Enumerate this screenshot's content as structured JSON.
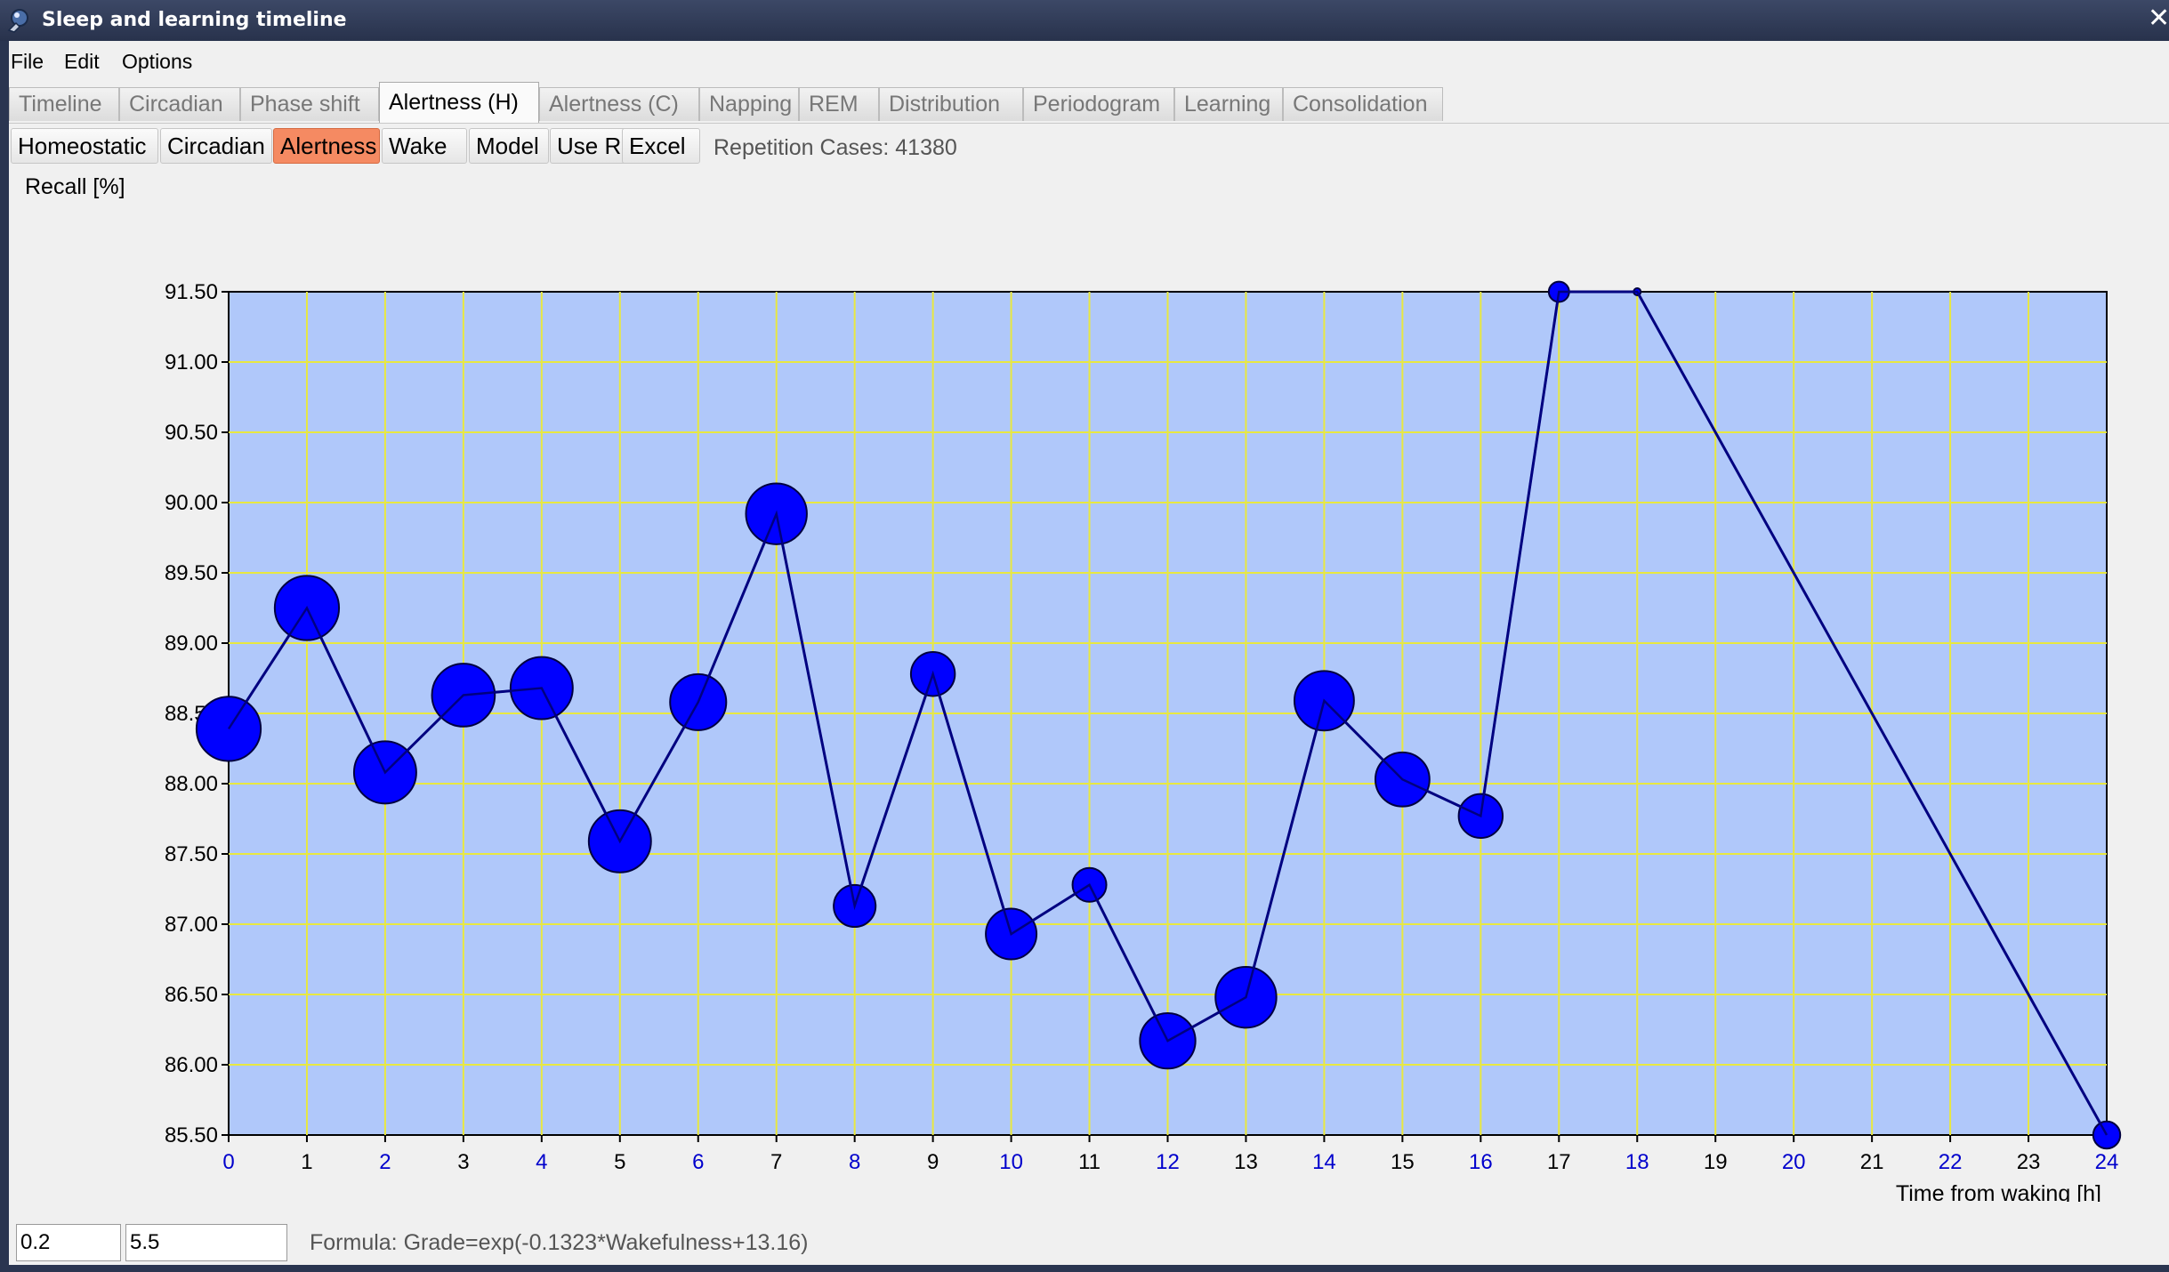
{
  "window": {
    "title": "Sleep and learning timeline",
    "close_glyph": "✕"
  },
  "menu": [
    "File",
    "Edit",
    "Options"
  ],
  "tabs": [
    {
      "label": "Timeline",
      "active": false
    },
    {
      "label": "Circadian",
      "active": false
    },
    {
      "label": "Phase shift",
      "active": false
    },
    {
      "label": "Alertness (H)",
      "active": true
    },
    {
      "label": "Alertness (C)",
      "active": false
    },
    {
      "label": "Napping",
      "active": false
    },
    {
      "label": "REM",
      "active": false
    },
    {
      "label": "Distribution",
      "active": false
    },
    {
      "label": "Periodogram",
      "active": false
    },
    {
      "label": "Learning",
      "active": false
    },
    {
      "label": "Consolidation",
      "active": false
    }
  ],
  "subtabs": [
    {
      "label": "Homeostatic",
      "active": false
    },
    {
      "label": "Circadian",
      "active": false
    },
    {
      "label": "Alertness",
      "active": true
    },
    {
      "label": "Wake",
      "active": false
    },
    {
      "label": "Model",
      "active": false
    },
    {
      "label": "Use R",
      "active": false
    },
    {
      "label": "Excel",
      "active": false
    }
  ],
  "repetition_cases": "Repetition Cases: 41380",
  "inputs": {
    "param1": "0.2",
    "param2": "5.5"
  },
  "formula": "Formula: Grade=exp(-0.1323*Wakefulness+13.16)",
  "colors": {
    "plot_bg": "#b0c8fa",
    "grid": "#e8e840",
    "line": "#000080",
    "marker": "#0000ff",
    "active_subtab": "#f58a62",
    "blue_tick": "#0000cc"
  },
  "chart_data": {
    "type": "scatter",
    "ylabel": "Recall [%]",
    "xlabel": "Time from waking [h]",
    "ylim": [
      85.5,
      91.5
    ],
    "xlim": [
      0,
      24
    ],
    "y_ticks": [
      "91.50",
      "91.00",
      "90.50",
      "90.00",
      "89.50",
      "89.00",
      "88.50",
      "88.00",
      "87.50",
      "87.00",
      "86.50",
      "86.00",
      "85.50"
    ],
    "x_ticks": [
      "0",
      "1",
      "2",
      "3",
      "4",
      "5",
      "6",
      "7",
      "8",
      "9",
      "10",
      "11",
      "12",
      "13",
      "14",
      "15",
      "16",
      "17",
      "18",
      "19",
      "20",
      "21",
      "22",
      "23",
      "24"
    ],
    "grid": true,
    "series": [
      {
        "points": [
          {
            "x": 0,
            "y": 88.39,
            "size": 0.95
          },
          {
            "x": 1,
            "y": 89.25,
            "size": 0.95
          },
          {
            "x": 2,
            "y": 88.08,
            "size": 0.92
          },
          {
            "x": 3,
            "y": 88.63,
            "size": 0.93
          },
          {
            "x": 4,
            "y": 88.68,
            "size": 0.92
          },
          {
            "x": 5,
            "y": 87.59,
            "size": 0.92
          },
          {
            "x": 6,
            "y": 88.58,
            "size": 0.83
          },
          {
            "x": 7,
            "y": 89.92,
            "size": 0.9
          },
          {
            "x": 8,
            "y": 87.13,
            "size": 0.62
          },
          {
            "x": 9,
            "y": 88.78,
            "size": 0.65
          },
          {
            "x": 10,
            "y": 86.93,
            "size": 0.75
          },
          {
            "x": 11,
            "y": 87.28,
            "size": 0.5
          },
          {
            "x": 12,
            "y": 86.17,
            "size": 0.82
          },
          {
            "x": 13,
            "y": 86.48,
            "size": 0.9
          },
          {
            "x": 14,
            "y": 88.59,
            "size": 0.88
          },
          {
            "x": 15,
            "y": 88.03,
            "size": 0.8
          },
          {
            "x": 16,
            "y": 87.77,
            "size": 0.65
          },
          {
            "x": 17,
            "y": 91.5,
            "size": 0.3
          },
          {
            "x": 18,
            "y": 91.5,
            "size": 0.1
          },
          {
            "x": 24,
            "y": 85.5,
            "size": 0.4
          }
        ]
      }
    ]
  }
}
